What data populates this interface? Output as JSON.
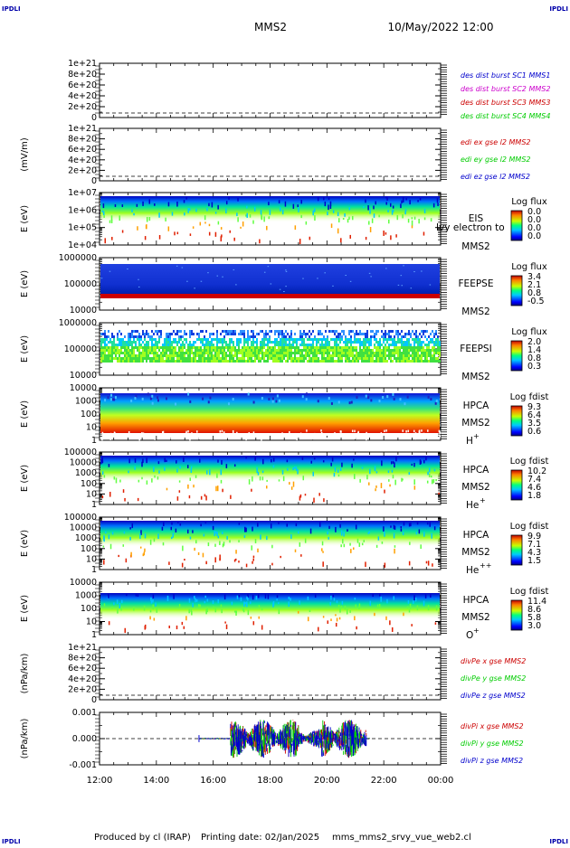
{
  "header": {
    "logo_left": "IPDLI",
    "logo_right": "IPDLI",
    "mission": "MMS2",
    "datetime": "10/May/2022 12:00"
  },
  "footer": {
    "produced_by": "Produced by cl (IRAP)",
    "printing_date": "Printing date: 02/Jan/2025",
    "script_name": "mms_mms2_srvy_vue_web2.cl",
    "logo_left": "IPDLI",
    "logo_right": "IPDLI"
  },
  "x_axis": {
    "ticks": [
      "12:00",
      "14:00",
      "16:00",
      "18:00",
      "20:00",
      "22:00",
      "00:00"
    ],
    "range_hours": [
      12,
      24
    ]
  },
  "colors": {
    "mms1": "#0000cc",
    "mms2": "#cc00cc",
    "mms3": "#cc0000",
    "mms4": "#00cc00",
    "x": "#cc0000",
    "y": "#00cc00",
    "z": "#0000cc"
  },
  "chart_data": [
    {
      "id": "des-dist",
      "type": "line",
      "ylabel": "",
      "yticks": [
        "1e+21",
        "8e+20",
        "6e+20",
        "4e+20",
        "2e+20",
        "0"
      ],
      "ylim": [
        0,
        1e+21
      ],
      "legend": [
        {
          "label": "des dist burst SC1 MMS1",
          "color": "#0000cc"
        },
        {
          "label": "des dist burst SC2 MMS2",
          "color": "#cc00cc"
        },
        {
          "label": "des dist burst SC3 MMS3",
          "color": "#cc0000"
        },
        {
          "label": "des dist burst SC4 MMS4",
          "color": "#00cc00"
        }
      ]
    },
    {
      "id": "edi",
      "type": "line",
      "ylabel": "(mV/m)",
      "yticks": [
        "1e+21",
        "8e+20",
        "6e+20",
        "4e+20",
        "2e+20",
        "0"
      ],
      "ylim": [
        0,
        1e+21
      ],
      "legend": [
        {
          "label": "edi ex gse l2 MMS2",
          "color": "#cc0000"
        },
        {
          "label": "edi ey gse l2 MMS2",
          "color": "#00cc00"
        },
        {
          "label": "edi ez gse l2 MMS2",
          "color": "#0000cc"
        }
      ]
    },
    {
      "id": "eis",
      "type": "heatmap",
      "ylabel": "E (eV)",
      "yticks": [
        "1e+07",
        "1e+06",
        "1e+05",
        "1e+04"
      ],
      "ylim": [
        10000,
        10000000
      ],
      "scale": "log",
      "inst": "EIS",
      "sc": "MMS2",
      "species": "",
      "overlay": "Ivy electron to",
      "cbar_title": "Log flux",
      "cbar_ticks": [
        "0.0",
        "0.0",
        "0.0",
        "0.0"
      ]
    },
    {
      "id": "feeps-e",
      "type": "heatmap",
      "ylabel": "E (eV)",
      "yticks": [
        "1000000",
        "100000",
        "10000"
      ],
      "ylim": [
        10000,
        1000000
      ],
      "scale": "log",
      "inst": "FEEPSE",
      "sc": "MMS2",
      "species": "",
      "cbar_title": "Log flux",
      "cbar_ticks": [
        "3.4",
        "2.1",
        "0.8",
        "-0.5"
      ]
    },
    {
      "id": "feeps-i",
      "type": "heatmap",
      "ylabel": "E (eV)",
      "yticks": [
        "1000000",
        "100000",
        "10000"
      ],
      "ylim": [
        10000,
        1000000
      ],
      "scale": "log",
      "inst": "FEEPSI",
      "sc": "MMS2",
      "species": "",
      "cbar_title": "Log flux",
      "cbar_ticks": [
        "2.0",
        "1.4",
        "0.8",
        "0.3"
      ]
    },
    {
      "id": "hpca-h",
      "type": "heatmap",
      "ylabel": "E (eV)",
      "yticks": [
        "10000",
        "1000",
        "100",
        "10",
        "1"
      ],
      "ylim": [
        1,
        40000
      ],
      "scale": "log",
      "inst": "HPCA",
      "sc": "MMS2",
      "species": "H",
      "charge": "+",
      "cbar_title": "Log fdist",
      "cbar_ticks": [
        "9.3",
        "6.4",
        "3.5",
        "0.6"
      ]
    },
    {
      "id": "hpca-he",
      "type": "heatmap",
      "ylabel": "E (eV)",
      "yticks": [
        "100000",
        "10000",
        "1000",
        "100",
        "10",
        "1"
      ],
      "ylim": [
        1,
        100000
      ],
      "scale": "log",
      "inst": "HPCA",
      "sc": "MMS2",
      "species": "He",
      "charge": "+",
      "cbar_title": "Log fdist",
      "cbar_ticks": [
        "10.2",
        "7.4",
        "4.6",
        "1.8"
      ]
    },
    {
      "id": "hpca-he2",
      "type": "heatmap",
      "ylabel": "E (eV)",
      "yticks": [
        "100000",
        "10000",
        "1000",
        "100",
        "10",
        "1"
      ],
      "ylim": [
        1,
        100000
      ],
      "scale": "log",
      "inst": "HPCA",
      "sc": "MMS2",
      "species": "He",
      "charge": "++",
      "cbar_title": "Log fdist",
      "cbar_ticks": [
        "9.9",
        "7.1",
        "4.3",
        "1.5"
      ]
    },
    {
      "id": "hpca-o",
      "type": "heatmap",
      "ylabel": "E (eV)",
      "yticks": [
        "10000",
        "1000",
        "100",
        "10",
        "1"
      ],
      "ylim": [
        1,
        40000
      ],
      "scale": "log",
      "inst": "HPCA",
      "sc": "MMS2",
      "species": "O",
      "charge": "+",
      "cbar_title": "Log fdist",
      "cbar_ticks": [
        "11.4",
        "8.6",
        "5.8",
        "3.0"
      ]
    },
    {
      "id": "divpe",
      "type": "line",
      "ylabel": "(nPa/km)",
      "yticks": [
        "1e+21",
        "8e+20",
        "6e+20",
        "4e+20",
        "2e+20",
        "0"
      ],
      "ylim": [
        0,
        1e+21
      ],
      "legend": [
        {
          "label": "divPe x gse MMS2",
          "color": "#cc0000"
        },
        {
          "label": "divPe y gse MMS2",
          "color": "#00cc00"
        },
        {
          "label": "divPe z gse MMS2",
          "color": "#0000cc"
        }
      ]
    },
    {
      "id": "divpi",
      "type": "line",
      "ylabel": "(nPa/km)",
      "yticks": [
        "0.001",
        "0.000",
        "-0.001"
      ],
      "ylim": [
        -0.0015,
        0.0015
      ],
      "data_range_hours": [
        15.5,
        21.5
      ],
      "legend": [
        {
          "label": "divPi x gse MMS2",
          "color": "#cc0000"
        },
        {
          "label": "divPi y gse MMS2",
          "color": "#00cc00"
        },
        {
          "label": "divPi z gse MMS2",
          "color": "#0000cc"
        }
      ]
    }
  ]
}
